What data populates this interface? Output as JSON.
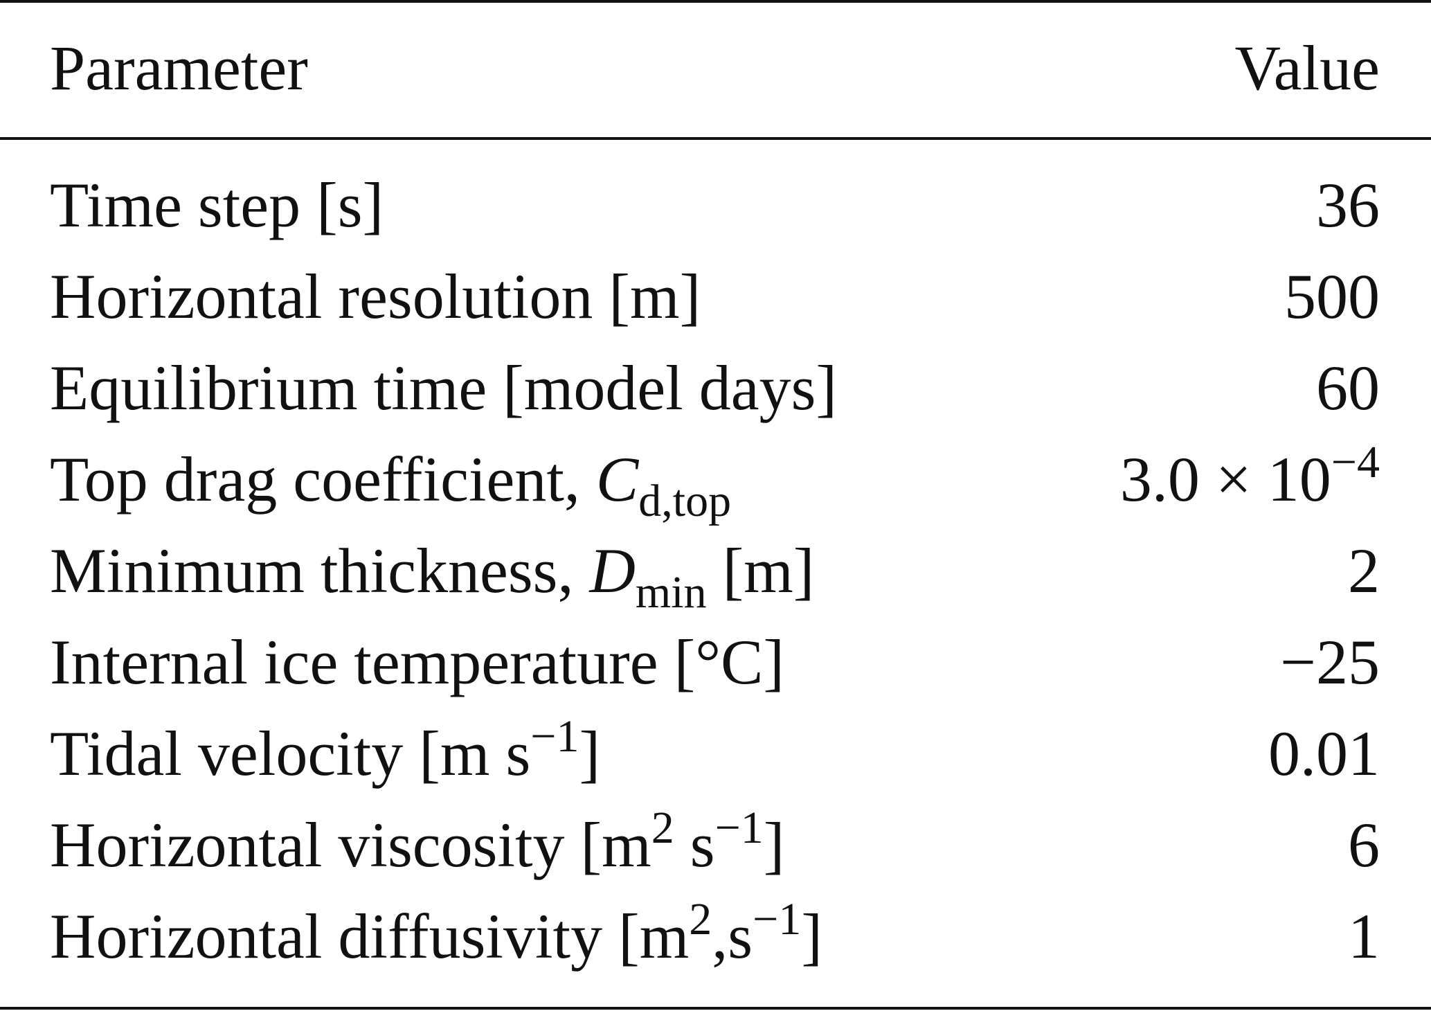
{
  "table": {
    "header": [
      "Parameter",
      "Value"
    ],
    "rows": [
      [
        [
          "Time step [s]"
        ],
        [
          36
        ]
      ],
      [
        [
          "Horizontal resolution [m]"
        ],
        [
          500
        ]
      ],
      [
        [
          "Equilibrium time [model days]"
        ],
        [
          60
        ]
      ],
      [
        [
          "Top drag coefficient, ",
          {
            "i": "C"
          },
          {
            "sub": "d,top"
          }
        ],
        [
          "3.0 × 10",
          {
            "sup": "−4"
          }
        ]
      ],
      [
        [
          "Minimum thickness, ",
          {
            "i": "D"
          },
          {
            "sub": "min"
          },
          " [m]"
        ],
        [
          2
        ]
      ],
      [
        [
          "Internal ice temperature [°C]"
        ],
        [
          "−25"
        ]
      ],
      [
        [
          "Tidal velocity [m s",
          {
            "sup": "−1"
          },
          "]"
        ],
        [
          0.01
        ]
      ],
      [
        [
          "Horizontal viscosity [m",
          {
            "sup": "2"
          },
          " s",
          {
            "sup": "−1"
          },
          "]"
        ],
        [
          6
        ]
      ],
      [
        [
          "Horizontal diffusivity [m",
          {
            "sup": "2"
          },
          ",s",
          {
            "sup": "−1"
          },
          "]"
        ],
        [
          1
        ]
      ]
    ]
  }
}
